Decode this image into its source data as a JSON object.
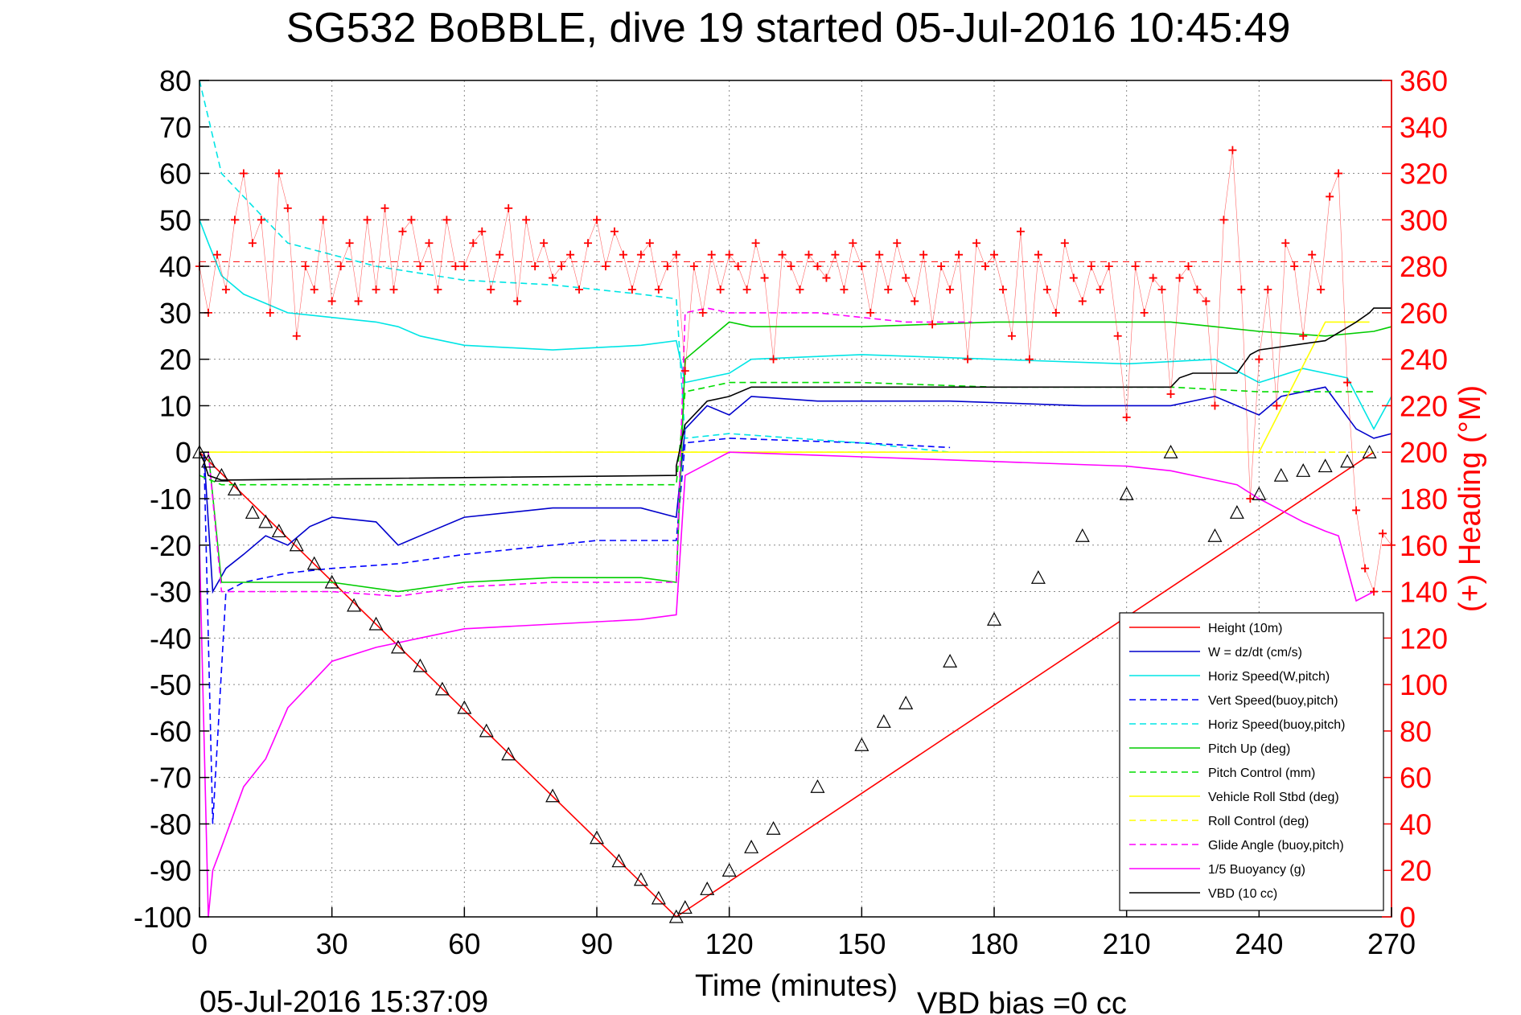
{
  "chart_data": {
    "type": "line",
    "title": "SG532 BoBBLE, dive 19 started 05-Jul-2016 10:45:49",
    "xlabel": "Time (minutes)",
    "ylabel_right": "(+) Heading (°M)",
    "xlim": [
      0,
      270
    ],
    "ylim": [
      -100,
      80
    ],
    "ylim_right": [
      0,
      360
    ],
    "x_ticks": [
      0,
      30,
      60,
      90,
      120,
      150,
      180,
      210,
      240,
      270
    ],
    "x_tick_labels": [
      "0",
      "30",
      "60",
      "90",
      "120",
      "150",
      "180",
      "210",
      "240",
      "270"
    ],
    "y_ticks": [
      80,
      70,
      60,
      50,
      40,
      30,
      20,
      10,
      0,
      -10,
      -20,
      -30,
      -40,
      -50,
      -60,
      -70,
      -80,
      -90,
      -100
    ],
    "y_tick_labels": [
      "80",
      "70",
      "60",
      "50",
      "40",
      "30",
      "20",
      "10",
      "0",
      "-10",
      "-20",
      "-30",
      "-40",
      "-50",
      "-60",
      "-70",
      "-80",
      "-90",
      "-100"
    ],
    "y_right_ticks": [
      360,
      340,
      320,
      300,
      280,
      260,
      240,
      220,
      200,
      180,
      160,
      140,
      120,
      100,
      80,
      60,
      40,
      20,
      0
    ],
    "y_right_tick_labels": [
      "360",
      "340",
      "320",
      "300",
      "280",
      "260",
      "240",
      "220",
      "200",
      "180",
      "160",
      "140",
      "120",
      "100",
      "80",
      "60",
      "40",
      "20",
      "0"
    ],
    "grid": true,
    "legend_position": "bottom-right",
    "footer_left": "05-Jul-2016 15:37:09",
    "footer_right": "VBD bias =0 cc",
    "heading_reference": 282,
    "series": [
      {
        "name": "Height (10m)",
        "color": "#ff0000",
        "style": "solid",
        "x": [
          0,
          108,
          108,
          266
        ],
        "y": [
          0,
          -100,
          -100,
          0
        ]
      },
      {
        "name": "W = dz/dt (cm/s)",
        "color": "#0000cc",
        "style": "solid",
        "x": [
          1,
          3,
          6,
          10,
          15,
          20,
          25,
          30,
          40,
          45,
          50,
          60,
          80,
          90,
          100,
          108,
          110,
          115,
          120,
          125,
          140,
          170,
          200,
          220,
          230,
          240,
          245,
          255,
          262,
          266,
          270
        ],
        "y": [
          0,
          -30,
          -25,
          -22,
          -18,
          -20,
          -16,
          -14,
          -15,
          -20,
          -18,
          -14,
          -12,
          -12,
          -12,
          -14,
          5,
          10,
          8,
          12,
          11,
          11,
          10,
          10,
          12,
          8,
          12,
          14,
          5,
          3,
          4
        ]
      },
      {
        "name": "Horiz Speed(W,pitch)",
        "color": "#00e5e5",
        "style": "solid",
        "x": [
          0,
          2,
          5,
          10,
          15,
          20,
          30,
          40,
          45,
          50,
          60,
          80,
          100,
          108,
          110,
          120,
          125,
          150,
          180,
          210,
          230,
          240,
          250,
          260,
          266,
          270
        ],
        "y": [
          50,
          45,
          38,
          34,
          32,
          30,
          29,
          28,
          27,
          25,
          23,
          22,
          23,
          24,
          15,
          17,
          20,
          21,
          20,
          19,
          20,
          15,
          18,
          16,
          5,
          12
        ]
      },
      {
        "name": "Vert Speed(buoy,pitch)",
        "color": "#0000ff",
        "style": "dashed",
        "x": [
          1,
          3,
          6,
          10,
          20,
          30,
          45,
          60,
          90,
          108,
          110,
          120,
          150,
          170
        ],
        "y": [
          0,
          -80,
          -30,
          -28,
          -26,
          -25,
          -24,
          -22,
          -19,
          -19,
          2,
          3,
          2,
          1
        ]
      },
      {
        "name": "Horiz Speed(buoy,pitch)",
        "color": "#00e5e5",
        "style": "dashed",
        "x": [
          0,
          5,
          20,
          40,
          60,
          80,
          100,
          108,
          110,
          120,
          150,
          170
        ],
        "y": [
          80,
          60,
          45,
          40,
          37,
          36,
          34,
          33,
          3,
          4,
          2,
          0
        ]
      },
      {
        "name": "Pitch Up (deg)",
        "color": "#00cc00",
        "style": "solid",
        "x": [
          2,
          5,
          20,
          30,
          45,
          60,
          80,
          100,
          108,
          110,
          120,
          125,
          150,
          180,
          220,
          230,
          240,
          255,
          266,
          270
        ],
        "y": [
          0,
          -28,
          -28,
          -28,
          -30,
          -28,
          -27,
          -27,
          -28,
          20,
          28,
          27,
          27,
          28,
          28,
          27,
          26,
          25,
          26,
          27
        ]
      },
      {
        "name": "Pitch Control (mm)",
        "color": "#00dd00",
        "style": "dashed",
        "x": [
          0,
          5,
          10,
          40,
          60,
          100,
          108,
          110,
          120,
          150,
          180,
          220,
          240,
          266
        ],
        "y": [
          -5,
          -7,
          -7,
          -7,
          -7,
          -7,
          -7,
          13,
          15,
          15,
          14,
          14,
          13,
          13
        ]
      },
      {
        "name": "Vehicle Roll Stbd (deg)",
        "color": "#ffff00",
        "style": "solid",
        "x": [
          0,
          10,
          50,
          100,
          108,
          110,
          150,
          200,
          230,
          240,
          255,
          265
        ],
        "y": [
          0,
          0,
          0,
          0,
          0,
          0,
          0,
          0,
          0,
          0,
          28,
          28
        ]
      },
      {
        "name": "Roll Control (deg)",
        "color": "#ffff00",
        "style": "dashed",
        "x": [
          0,
          108,
          110,
          266
        ],
        "y": [
          0,
          0,
          0,
          0
        ]
      },
      {
        "name": "Glide Angle (buoy,pitch)",
        "color": "#ff00ff",
        "style": "dashed",
        "x": [
          2,
          5,
          20,
          30,
          45,
          60,
          80,
          100,
          108,
          110,
          115,
          120,
          140,
          160,
          175
        ],
        "y": [
          0,
          -30,
          -30,
          -30,
          -31,
          -29,
          -28,
          -28,
          -28,
          30,
          31,
          30,
          30,
          28,
          28
        ]
      },
      {
        "name": "1/5 Buoyancy (g)",
        "color": "#ff00ff",
        "style": "solid",
        "x": [
          0,
          1,
          2,
          3,
          5,
          10,
          15,
          20,
          30,
          40,
          50,
          60,
          80,
          100,
          108,
          110,
          120,
          150,
          180,
          210,
          220,
          230,
          235,
          240,
          250,
          255,
          258,
          262,
          266
        ],
        "y": [
          -20,
          -60,
          -100,
          -90,
          -85,
          -72,
          -66,
          -55,
          -45,
          -42,
          -40,
          -38,
          -37,
          -36,
          -35,
          -5,
          0,
          -1,
          -2,
          -3,
          -4,
          -6,
          -7,
          -10,
          -15,
          -17,
          -18,
          -32,
          -30
        ]
      },
      {
        "name": "VBD (10 cc)",
        "color": "#000000",
        "style": "solid",
        "x": [
          0,
          1,
          2,
          5,
          108,
          108,
          110,
          115,
          120,
          125,
          220,
          222,
          225,
          235,
          238,
          240,
          255,
          262,
          265,
          266,
          270
        ],
        "y": [
          0,
          -2,
          -5,
          -6,
          -5,
          -3,
          6,
          11,
          12,
          14,
          14,
          16,
          17,
          17,
          21,
          22,
          24,
          28,
          30,
          31,
          31
        ]
      }
    ],
    "heading_series": {
      "name": "(+) Heading (°M)",
      "color": "#ff0000",
      "marker": "+",
      "x": [
        0,
        2,
        4,
        6,
        8,
        10,
        12,
        14,
        16,
        18,
        20,
        22,
        24,
        26,
        28,
        30,
        32,
        34,
        36,
        38,
        40,
        42,
        44,
        46,
        48,
        50,
        52,
        54,
        56,
        58,
        60,
        62,
        64,
        66,
        68,
        70,
        72,
        74,
        76,
        78,
        80,
        82,
        84,
        86,
        88,
        90,
        92,
        94,
        96,
        98,
        100,
        102,
        104,
        106,
        108,
        110,
        112,
        114,
        116,
        118,
        120,
        122,
        124,
        126,
        128,
        130,
        132,
        134,
        136,
        138,
        140,
        142,
        144,
        146,
        148,
        150,
        152,
        154,
        156,
        158,
        160,
        162,
        164,
        166,
        168,
        170,
        172,
        174,
        176,
        178,
        180,
        182,
        184,
        186,
        188,
        190,
        192,
        194,
        196,
        198,
        200,
        202,
        204,
        206,
        208,
        210,
        212,
        214,
        216,
        218,
        220,
        222,
        224,
        226,
        228,
        230,
        232,
        234,
        236,
        238,
        240,
        242,
        244,
        246,
        248,
        250,
        252,
        254,
        256,
        258,
        260,
        262,
        264,
        266,
        268,
        270
      ],
      "y": [
        280,
        260,
        285,
        270,
        300,
        320,
        290,
        300,
        260,
        320,
        305,
        250,
        280,
        270,
        300,
        265,
        280,
        290,
        265,
        300,
        270,
        305,
        270,
        295,
        300,
        280,
        290,
        270,
        300,
        280,
        280,
        290,
        295,
        270,
        285,
        305,
        265,
        300,
        280,
        290,
        275,
        280,
        285,
        270,
        290,
        300,
        280,
        295,
        285,
        270,
        285,
        290,
        270,
        280,
        285,
        235,
        280,
        260,
        285,
        270,
        285,
        280,
        270,
        290,
        275,
        240,
        285,
        280,
        270,
        285,
        280,
        275,
        285,
        270,
        290,
        280,
        260,
        285,
        270,
        290,
        275,
        265,
        285,
        255,
        280,
        270,
        285,
        240,
        290,
        280,
        285,
        270,
        250,
        295,
        240,
        285,
        270,
        260,
        290,
        275,
        265,
        280,
        270,
        280,
        250,
        215,
        280,
        260,
        275,
        270,
        225,
        275,
        280,
        270,
        265,
        220,
        300,
        330,
        270,
        180,
        240,
        270,
        220,
        290,
        280,
        250,
        285,
        270,
        310,
        320,
        230,
        175,
        150,
        140,
        165,
        160
      ]
    },
    "markers": {
      "marker": "triangle",
      "x": [
        0,
        2,
        5,
        8,
        12,
        15,
        18,
        22,
        26,
        30,
        35,
        40,
        45,
        50,
        55,
        60,
        65,
        70,
        80,
        90,
        95,
        100,
        104,
        108,
        110,
        115,
        120,
        125,
        130,
        140,
        150,
        155,
        160,
        170,
        180,
        190,
        200,
        210,
        220,
        230,
        235,
        240,
        245,
        250,
        255,
        260,
        265
      ],
      "y": [
        0,
        -2,
        -5,
        -8,
        -13,
        -15,
        -17,
        -20,
        -24,
        -28,
        -33,
        -37,
        -42,
        -46,
        -51,
        -55,
        -60,
        -65,
        -74,
        -83,
        -88,
        -92,
        -96,
        -100,
        -98,
        -94,
        -90,
        -85,
        -81,
        -72,
        -63,
        -58,
        -54,
        -45,
        -36,
        -27,
        -18,
        -9,
        0,
        -18,
        -13,
        -9,
        -5,
        -4,
        -3,
        -2,
        0
      ]
    }
  }
}
